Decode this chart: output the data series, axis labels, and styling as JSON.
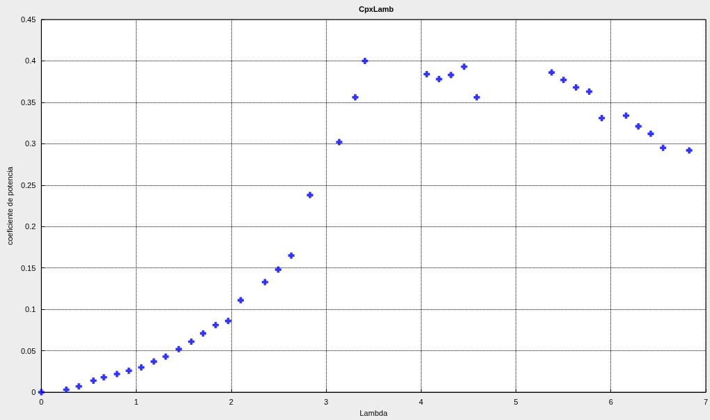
{
  "chart_data": {
    "type": "scatter",
    "title": "CpxLamb",
    "xlabel": "Lambda",
    "ylabel": "coeficiente de potencia",
    "x": [
      0,
      0.263,
      0.395,
      0.549,
      0.658,
      0.797,
      0.922,
      1.053,
      1.185,
      1.31,
      1.448,
      1.58,
      1.704,
      1.836,
      1.968,
      2.1,
      2.356,
      2.495,
      2.633,
      2.83,
      3.138,
      3.307,
      3.409,
      4.06,
      4.19,
      4.315,
      4.454,
      4.587,
      5.376,
      5.501,
      5.633,
      5.772,
      5.904,
      6.16,
      6.29,
      6.42,
      6.55,
      6.825
    ],
    "series": [
      {
        "color": "#0000ff",
        "values": [
          0,
          0.003,
          0.007,
          0.014,
          0.018,
          0.022,
          0.026,
          0.03,
          0.037,
          0.043,
          0.052,
          0.061,
          0.071,
          0.081,
          0.086,
          0.111,
          0.133,
          0.148,
          0.165,
          0.238,
          0.302,
          0.356,
          0.4,
          0.384,
          0.378,
          0.383,
          0.393,
          0.356,
          0.386,
          0.377,
          0.368,
          0.363,
          0.331,
          0.334,
          0.321,
          0.312,
          0.295,
          0.292
        ]
      }
    ],
    "xlim": [
      0,
      7
    ],
    "xticks": [
      0,
      1,
      2,
      3,
      4,
      5,
      6,
      7
    ],
    "ylim": [
      0,
      0.45
    ],
    "yticks": [
      0,
      0.05,
      0.1,
      0.15,
      0.2,
      0.25,
      0.3,
      0.35,
      0.4,
      0.45
    ],
    "grid": true,
    "marker": "cross"
  }
}
